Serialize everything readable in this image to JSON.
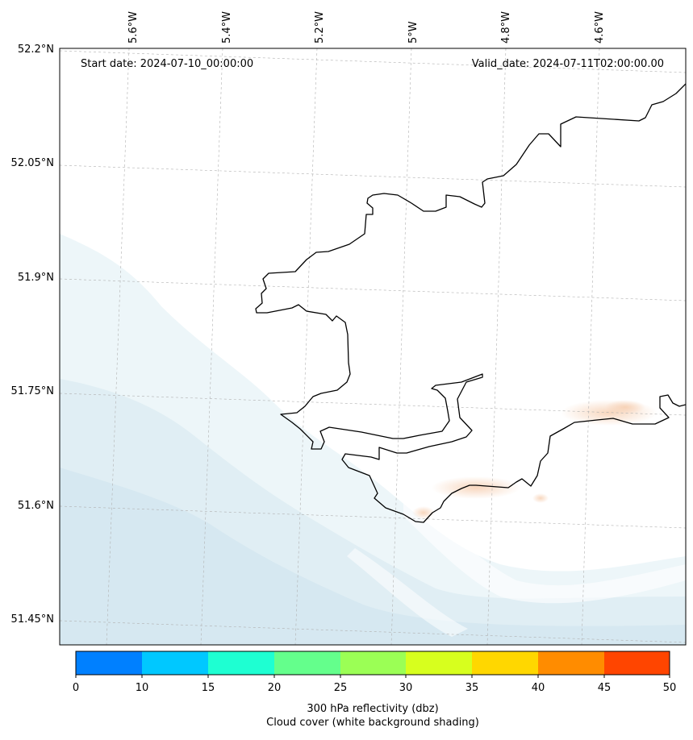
{
  "map": {
    "start_label": "Start date: 2024-07-10_00:00:00",
    "valid_label": "Valid_date: 2024-07-11T02:00:00.00",
    "lon_labels": [
      "5.6°W",
      "5.4°W",
      "5.2°W",
      "5°W",
      "4.8°W",
      "4.6°W"
    ],
    "lat_labels": [
      "52.2°N",
      "52.05°N",
      "51.9°N",
      "51.75°N",
      "51.6°N",
      "51.45°N"
    ],
    "gridlines": true,
    "coastline_color": "#000000",
    "cloud_shading_color": "#d6e8f0",
    "reflectivity_patch_color": "#f5c9a8"
  },
  "colorbar": {
    "ticks": [
      "0",
      "10",
      "15",
      "20",
      "25",
      "30",
      "35",
      "40",
      "45",
      "50"
    ],
    "colors": [
      "#0080ff",
      "#00c8ff",
      "#1effd2",
      "#64ff8c",
      "#9bff55",
      "#d7ff1e",
      "#ffd700",
      "#ff8c00",
      "#ff4500"
    ],
    "label_line1": "300 hPa reflectivity (dbz)",
    "label_line2": "Cloud cover (white background shading)"
  }
}
